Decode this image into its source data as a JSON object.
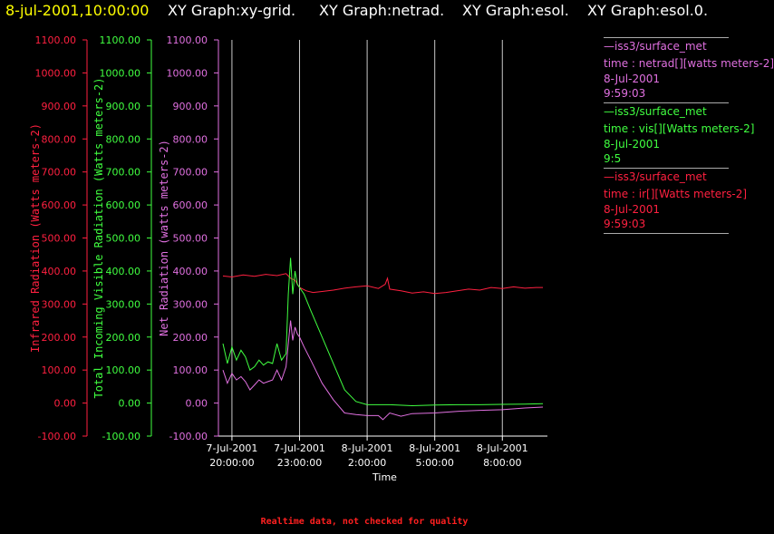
{
  "header": {
    "date": "8-jul-2001,10:00:00",
    "graphs": [
      "XY Graph:xy-grid.",
      "XY Graph:netrad.",
      "XY Graph:esol.",
      "XY Graph:esol.0."
    ]
  },
  "legend": [
    {
      "source": "—iss3/surface_met",
      "variable": "time : netrad[][watts meters-2]",
      "date": "8-Jul-2001",
      "time": "9:59:03",
      "color": "#e070e0"
    },
    {
      "source": "—iss3/surface_met",
      "variable": "time : vis[][Watts meters-2]",
      "date": "8-Jul-2001",
      "time": "9:5",
      "color": "#40ff40"
    },
    {
      "source": "—iss3/surface_met",
      "variable": "time : ir[][Watts meters-2]",
      "date": "8-Jul-2001",
      "time": "9:59:03",
      "color": "#ff2040"
    }
  ],
  "footnote": "Realtime data, not checked for quality",
  "chart_data": {
    "type": "line",
    "xlabel": "Time",
    "x_ticks": [
      {
        "t": -3,
        "line1": "7-Jul-2001",
        "line2": "20:00:00"
      },
      {
        "t": 0,
        "line1": "7-Jul-2001",
        "line2": "23:00:00"
      },
      {
        "t": 3,
        "line1": "8-Jul-2001",
        "line2": "2:00:00"
      },
      {
        "t": 6,
        "line1": "8-Jul-2001",
        "line2": "5:00:00"
      },
      {
        "t": 9,
        "line1": "8-Jul-2001",
        "line2": "8:00:00"
      }
    ],
    "x_unit_note": "hours relative to 7-Jul-2001 23:00:00",
    "xlim": [
      -3.6,
      11.0
    ],
    "ylim": [
      -100,
      1100
    ],
    "y_ticks": [
      -100,
      0,
      100,
      200,
      300,
      400,
      500,
      600,
      700,
      800,
      900,
      1000,
      1100
    ],
    "y_tick_labels": [
      "-100.00",
      "0.00",
      "100.00",
      "200.00",
      "300.00",
      "400.00",
      "500.00",
      "600.00",
      "700.00",
      "800.00",
      "900.00",
      "1000.00",
      "1100.00"
    ],
    "axes": [
      {
        "label": "Infrared Radiation (Watts meters-2)",
        "color": "#ff2040"
      },
      {
        "label": "Total Incoming Visible Radiation (Watts meters-2)",
        "color": "#40ff40"
      },
      {
        "label": "Net Radiation (watts meters-2)",
        "color": "#e070e0"
      }
    ],
    "series": [
      {
        "color": "#ff2040",
        "x": [
          -3.4,
          -3.0,
          -2.5,
          -2.0,
          -1.5,
          -1.0,
          -0.6,
          -0.4,
          -0.2,
          0.0,
          0.3,
          0.6,
          1.0,
          1.5,
          2.0,
          2.5,
          3.0,
          3.5,
          3.8,
          3.9,
          4.0,
          4.5,
          5.0,
          5.5,
          6.0,
          6.5,
          7.0,
          7.5,
          8.0,
          8.5,
          9.0,
          9.5,
          10.0,
          10.5,
          10.8
        ],
        "y": [
          385,
          382,
          388,
          384,
          390,
          386,
          392,
          378,
          372,
          350,
          340,
          335,
          338,
          342,
          348,
          352,
          355,
          347,
          360,
          378,
          345,
          340,
          333,
          337,
          332,
          335,
          340,
          345,
          342,
          350,
          347,
          352,
          348,
          350,
          350
        ]
      },
      {
        "color": "#40ff40",
        "x": [
          -3.4,
          -3.2,
          -3.0,
          -2.8,
          -2.6,
          -2.4,
          -2.2,
          -2.0,
          -1.8,
          -1.6,
          -1.4,
          -1.2,
          -1.0,
          -0.8,
          -0.6,
          -0.5,
          -0.4,
          -0.3,
          -0.2,
          -0.1,
          0.0,
          0.2,
          0.5,
          1.0,
          1.5,
          2.0,
          2.5,
          3.0,
          4.0,
          5.0,
          6.0,
          7.0,
          8.0,
          9.0,
          10.0,
          10.8
        ],
        "y": [
          180,
          120,
          170,
          130,
          160,
          140,
          100,
          110,
          130,
          115,
          125,
          120,
          180,
          130,
          150,
          330,
          440,
          330,
          400,
          360,
          350,
          330,
          280,
          200,
          120,
          40,
          5,
          -5,
          -5,
          -8,
          -6,
          -5,
          -5,
          -4,
          -3,
          -2
        ]
      },
      {
        "color": "#e070e0",
        "x": [
          -3.4,
          -3.2,
          -3.0,
          -2.8,
          -2.6,
          -2.4,
          -2.2,
          -2.0,
          -1.8,
          -1.6,
          -1.4,
          -1.2,
          -1.0,
          -0.8,
          -0.6,
          -0.5,
          -0.4,
          -0.3,
          -0.2,
          -0.1,
          0.0,
          0.2,
          0.5,
          1.0,
          1.5,
          2.0,
          2.5,
          3.0,
          3.5,
          3.7,
          4.0,
          4.5,
          5.0,
          6.0,
          7.0,
          8.0,
          9.0,
          10.0,
          10.8
        ],
        "y": [
          100,
          60,
          90,
          70,
          80,
          65,
          40,
          55,
          70,
          60,
          65,
          70,
          100,
          70,
          110,
          180,
          250,
          190,
          230,
          210,
          200,
          170,
          130,
          60,
          10,
          -30,
          -35,
          -38,
          -38,
          -50,
          -30,
          -40,
          -32,
          -30,
          -25,
          -22,
          -20,
          -15,
          -12
        ]
      }
    ]
  }
}
